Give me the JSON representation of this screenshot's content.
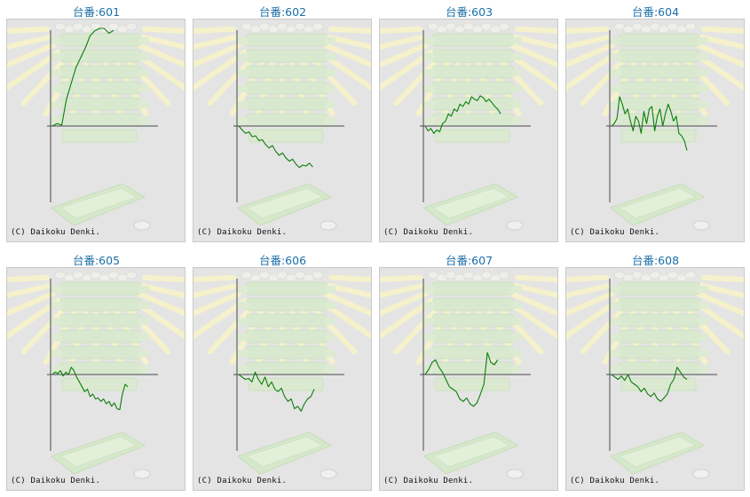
{
  "colors": {
    "title": "#1a6fa8",
    "line": "#0b7d0b",
    "axis": "#4a4a4a",
    "panel": "#e4e4e4"
  },
  "copyright": "(C) Daikoku Denki.",
  "chart_data": [
    {
      "type": "line",
      "title": "台番:601",
      "values": [
        0,
        5,
        2,
        55,
        88,
        120,
        140,
        160,
        185,
        195,
        200,
        200,
        190,
        196
      ]
    },
    {
      "type": "line",
      "title": "台番:602",
      "values": [
        0,
        -8,
        -15,
        -12,
        -22,
        -20,
        -30,
        -28,
        -38,
        -45,
        -40,
        -52,
        -60,
        -55,
        -65,
        -72,
        -68,
        -78,
        -85,
        -80,
        -82,
        -76,
        -84
      ]
    },
    {
      "type": "line",
      "title": "台番:603",
      "values": [
        0,
        -10,
        -5,
        -15,
        -8,
        -12,
        5,
        10,
        25,
        20,
        35,
        30,
        45,
        40,
        50,
        45,
        60,
        55,
        52,
        62,
        58,
        50,
        55,
        48,
        40,
        35,
        25
      ]
    },
    {
      "type": "line",
      "title": "台番:604",
      "values": [
        0,
        5,
        15,
        60,
        45,
        25,
        35,
        10,
        -10,
        20,
        10,
        -15,
        30,
        5,
        35,
        40,
        -10,
        20,
        35,
        0,
        25,
        45,
        30,
        10,
        20,
        -15,
        -20,
        -30,
        -50
      ]
    },
    {
      "type": "line",
      "title": "台番:605",
      "values": [
        0,
        5,
        2,
        8,
        -3,
        5,
        0,
        15,
        8,
        -5,
        -15,
        -25,
        -35,
        -30,
        -45,
        -40,
        -50,
        -48,
        -55,
        -50,
        -60,
        -55,
        -65,
        -58,
        -70,
        -72,
        -40,
        -20,
        -25
      ]
    },
    {
      "type": "line",
      "title": "台番:606",
      "values": [
        0,
        -5,
        -10,
        -8,
        -15,
        5,
        -10,
        -20,
        -5,
        -25,
        -15,
        -30,
        -35,
        -28,
        -45,
        -55,
        -50,
        -70,
        -65,
        -75,
        -60,
        -50,
        -45,
        -30
      ]
    },
    {
      "type": "line",
      "title": "台番:607",
      "values": [
        0,
        10,
        25,
        30,
        15,
        5,
        -10,
        -25,
        -30,
        -35,
        -50,
        -55,
        -48,
        -60,
        -65,
        -58,
        -40,
        -20,
        45,
        25,
        20,
        30
      ]
    },
    {
      "type": "line",
      "title": "台番:608",
      "values": [
        0,
        -5,
        -10,
        -3,
        -12,
        0,
        -15,
        -20,
        -25,
        -35,
        -28,
        -40,
        -45,
        -38,
        -50,
        -55,
        -48,
        -40,
        -20,
        -10,
        15,
        5,
        -5,
        -10
      ]
    }
  ]
}
